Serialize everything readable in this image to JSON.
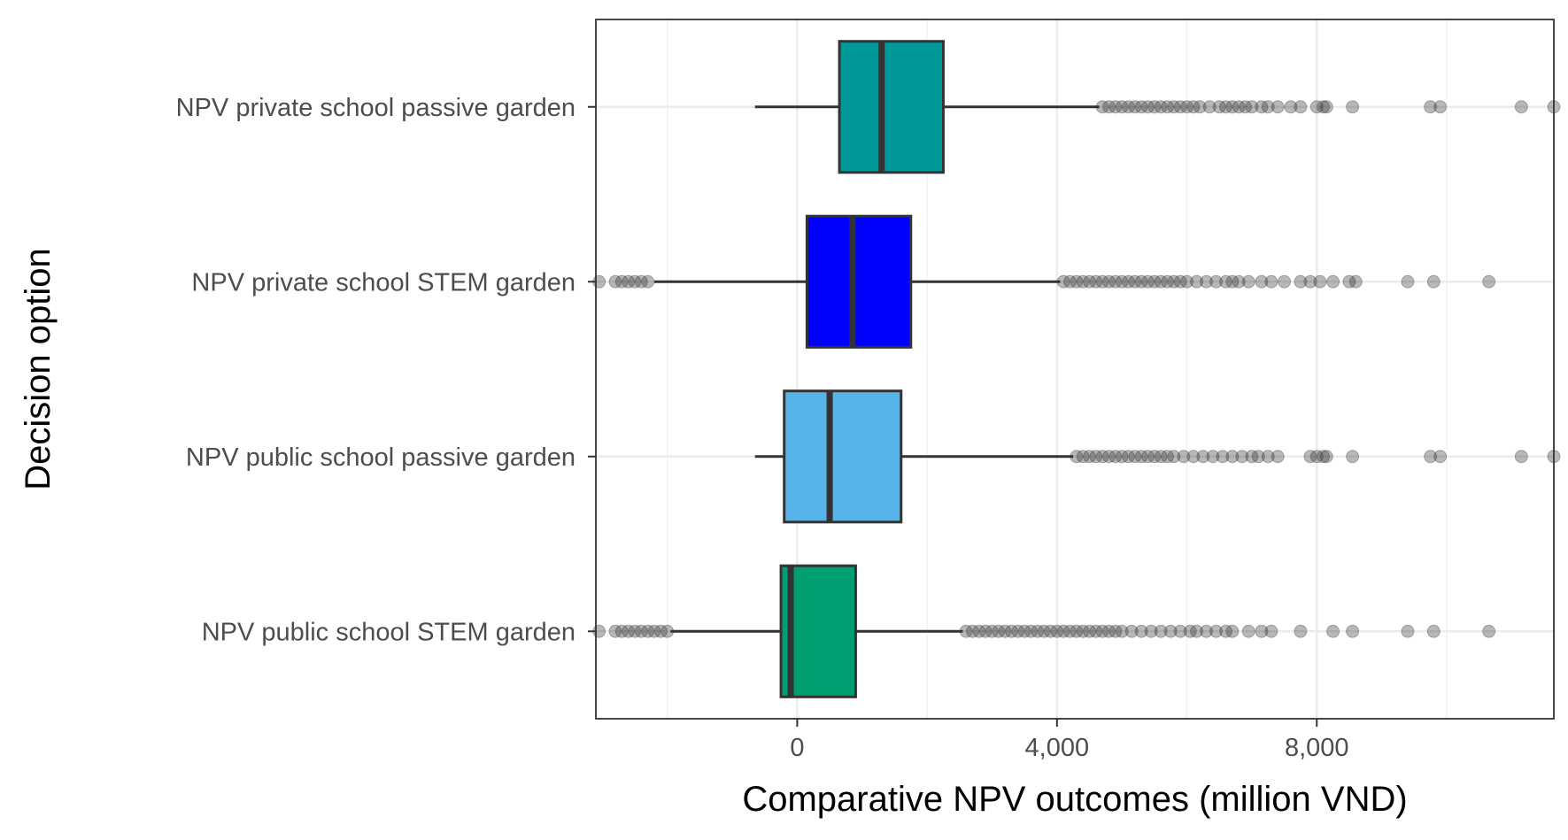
{
  "chart_data": {
    "type": "box",
    "orientation": "horizontal",
    "xlabel": "Comparative NPV outcomes (million VND)",
    "ylabel": "Decision option",
    "xlim": [
      -3100,
      11650
    ],
    "x_ticks": [
      0,
      4000,
      8000
    ],
    "x_tick_labels": [
      "0",
      "4,000",
      "8,000"
    ],
    "x_minor_ticks": [
      -2000,
      2000,
      6000,
      10000
    ],
    "grid": true,
    "legend": "none",
    "categories": [
      {
        "label": "NPV private school passive garden",
        "color": "#009999",
        "whisker_low": -650,
        "q1": 650,
        "median": 1300,
        "q3": 2250,
        "whisker_high": 4650,
        "outliers": [
          4700,
          4800,
          4900,
          5000,
          5100,
          5200,
          5300,
          5400,
          5500,
          5600,
          5700,
          5800,
          5900,
          6000,
          6100,
          6200,
          6350,
          6500,
          6600,
          6700,
          6800,
          6900,
          7000,
          7150,
          7250,
          7400,
          7600,
          7750,
          8000,
          8100,
          8150,
          8550,
          9750,
          9900,
          11150,
          11650
        ]
      },
      {
        "label": "NPV private school STEM garden",
        "color": "#0000FF",
        "whisker_low": -2200,
        "q1": 150,
        "median": 850,
        "q3": 1750,
        "whisker_high": 4050,
        "outliers": [
          -3050,
          -2800,
          -2700,
          -2600,
          -2500,
          -2400,
          -2300,
          4100,
          4200,
          4300,
          4400,
          4500,
          4600,
          4700,
          4800,
          4900,
          5000,
          5100,
          5200,
          5300,
          5400,
          5500,
          5600,
          5700,
          5800,
          5900,
          6000,
          6150,
          6300,
          6450,
          6600,
          6700,
          6800,
          6950,
          7150,
          7300,
          7500,
          7750,
          7900,
          8050,
          8250,
          8500,
          8600,
          9400,
          9800,
          10650
        ]
      },
      {
        "label": "NPV public school passive garden",
        "color": "#56B4E9",
        "whisker_low": -650,
        "q1": -200,
        "median": 500,
        "q3": 1600,
        "whisker_high": 4250,
        "outliers": [
          4300,
          4400,
          4500,
          4600,
          4700,
          4800,
          4900,
          5000,
          5100,
          5200,
          5300,
          5400,
          5500,
          5600,
          5700,
          5800,
          5950,
          6100,
          6250,
          6400,
          6550,
          6700,
          6850,
          7000,
          7100,
          7250,
          7400,
          7900,
          8000,
          8100,
          8150,
          8550,
          9750,
          9900,
          11150,
          11650
        ]
      },
      {
        "label": "NPV public school STEM garden",
        "color": "#009E73",
        "whisker_low": -1950,
        "q1": -250,
        "median": -100,
        "q3": 900,
        "whisker_high": 2550,
        "outliers": [
          -3050,
          -2800,
          -2700,
          -2600,
          -2500,
          -2400,
          -2300,
          -2200,
          -2100,
          -2000,
          2600,
          2700,
          2800,
          2900,
          3000,
          3100,
          3200,
          3300,
          3400,
          3500,
          3600,
          3700,
          3800,
          3900,
          4000,
          4100,
          4200,
          4300,
          4400,
          4500,
          4600,
          4700,
          4800,
          4900,
          5000,
          5150,
          5300,
          5450,
          5600,
          5750,
          5900,
          6050,
          6150,
          6300,
          6450,
          6600,
          6700,
          6950,
          7150,
          7300,
          7750,
          8250,
          8550,
          9400,
          9800,
          10650
        ]
      }
    ]
  }
}
